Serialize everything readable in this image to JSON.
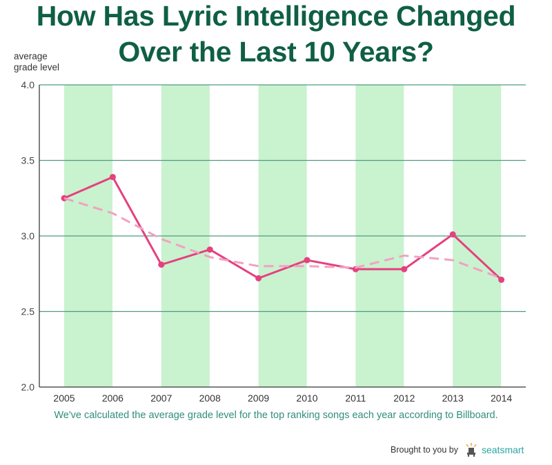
{
  "title_line1": "How Has Lyric Intelligence Changed",
  "title_line2": "Over the Last 10 Years?",
  "ylabel_line1": "average",
  "ylabel_line2": "grade level",
  "caption": "We've calculated the average grade level for the top ranking songs each year according to Billboard.",
  "footer": {
    "prefix": "Brought to you by",
    "brand": "seatsmart",
    "logo_icon": "seat-chair-icon"
  },
  "colors": {
    "title": "#0f5f45",
    "band": "#c9f2cf",
    "grid": "#4f9a80",
    "line": "#e5407f",
    "trend": "#f2a1c1",
    "caption": "#2f8e7a"
  },
  "chart_data": {
    "type": "line",
    "title": "How Has Lyric Intelligence Changed Over the Last 10 Years?",
    "xlabel": "",
    "ylabel": "average grade level",
    "x": [
      "2005",
      "2006",
      "2007",
      "2008",
      "2009",
      "2010",
      "2011",
      "2012",
      "2013",
      "2014"
    ],
    "ylim": [
      2.0,
      4.0
    ],
    "yticks": [
      "2.0",
      "2.5",
      "3.0",
      "3.5",
      "4.0"
    ],
    "series": [
      {
        "name": "average grade level",
        "style": "solid",
        "values": [
          3.25,
          3.39,
          2.81,
          2.91,
          2.72,
          2.84,
          2.78,
          2.78,
          3.01,
          2.71
        ]
      },
      {
        "name": "trend",
        "style": "dashed",
        "values": [
          3.25,
          3.15,
          2.98,
          2.86,
          2.8,
          2.8,
          2.79,
          2.87,
          2.84,
          2.72
        ]
      }
    ]
  }
}
